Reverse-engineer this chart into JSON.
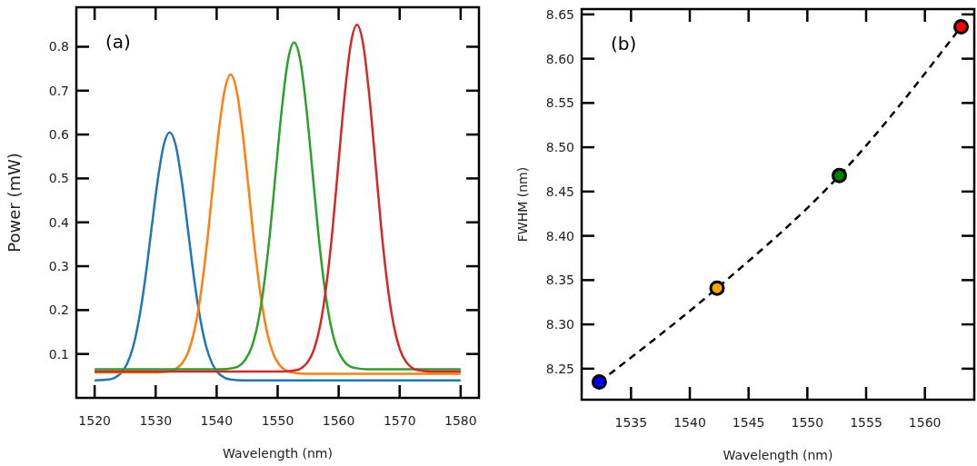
{
  "chart_data": [
    {
      "type": "line",
      "xlabel": "Wavelength (nm)",
      "ylabel": "Power (mW)",
      "annotations": [
        "(a)"
      ],
      "xlim": [
        1517,
        1583
      ],
      "ylim": [
        0,
        0.89
      ],
      "xticks": [
        1520,
        1530,
        1540,
        1550,
        1560,
        1570,
        1580
      ],
      "yticks": [
        0.1,
        0.2,
        0.3,
        0.4,
        0.5,
        0.6,
        0.7,
        0.8
      ],
      "marker": "none",
      "line_style": "solid",
      "series": [
        {
          "color": "#1f77b4",
          "x": [
            1520,
            1522.3,
            1523.3,
            1524.3,
            1525.3,
            1526.3,
            1527.3,
            1528.3,
            1529.3,
            1530.3,
            1531.3,
            1532.3,
            1533.3,
            1534.3,
            1535.3,
            1536.3,
            1537.3,
            1538.3,
            1539.3,
            1540.3,
            1541.3,
            1542.3,
            1544.3,
            1580
          ],
          "values": [
            0.04,
            0.042,
            0.046,
            0.056,
            0.077,
            0.116,
            0.181,
            0.272,
            0.383,
            0.492,
            0.575,
            0.605,
            0.575,
            0.492,
            0.383,
            0.272,
            0.181,
            0.116,
            0.077,
            0.056,
            0.046,
            0.042,
            0.04,
            0.04
          ]
        },
        {
          "color": "#ff7f0e",
          "x": [
            1520,
            1530.3,
            1532.3,
            1533.3,
            1534.3,
            1535.3,
            1536.3,
            1537.3,
            1538.3,
            1539.3,
            1540.3,
            1541.3,
            1542.3,
            1543.3,
            1544.3,
            1545.3,
            1546.3,
            1547.3,
            1548.3,
            1549.3,
            1550.3,
            1551.3,
            1552.3,
            1554.3,
            1580
          ],
          "values": [
            0.058,
            0.058,
            0.061,
            0.066,
            0.078,
            0.103,
            0.15,
            0.228,
            0.337,
            0.471,
            0.602,
            0.7,
            0.737,
            0.698,
            0.599,
            0.468,
            0.334,
            0.225,
            0.147,
            0.1,
            0.075,
            0.063,
            0.058,
            0.055,
            0.055
          ]
        },
        {
          "color": "#2ca02c",
          "x": [
            1520,
            1540.7,
            1542.7,
            1543.7,
            1544.7,
            1545.7,
            1546.7,
            1547.7,
            1548.7,
            1549.7,
            1550.7,
            1551.7,
            1552.7,
            1553.7,
            1554.7,
            1555.7,
            1556.7,
            1557.7,
            1558.7,
            1559.7,
            1560.7,
            1561.7,
            1562.7,
            1564.7,
            1580
          ],
          "values": [
            0.065,
            0.065,
            0.068,
            0.073,
            0.087,
            0.114,
            0.166,
            0.251,
            0.37,
            0.517,
            0.661,
            0.77,
            0.81,
            0.77,
            0.661,
            0.517,
            0.37,
            0.251,
            0.166,
            0.114,
            0.087,
            0.073,
            0.068,
            0.065,
            0.065
          ]
        },
        {
          "color": "#d62728",
          "x": [
            1520,
            1551,
            1553,
            1554,
            1555,
            1556,
            1557,
            1558,
            1559,
            1560,
            1561,
            1562,
            1563,
            1564,
            1565,
            1566,
            1567,
            1568,
            1569,
            1570,
            1571,
            1572,
            1573,
            1575,
            1580
          ],
          "values": [
            0.06,
            0.06,
            0.063,
            0.069,
            0.083,
            0.112,
            0.167,
            0.258,
            0.384,
            0.54,
            0.692,
            0.807,
            0.85,
            0.807,
            0.692,
            0.54,
            0.384,
            0.258,
            0.167,
            0.112,
            0.083,
            0.069,
            0.063,
            0.06,
            0.06
          ]
        }
      ]
    },
    {
      "type": "line",
      "xlabel": "Wavelength (nm)",
      "ylabel": "FWHM (nm)",
      "annotations": [
        "(b)"
      ],
      "xlim": [
        1530.8,
        1564.2
      ],
      "ylim": [
        8.215,
        8.656
      ],
      "xticks": [
        1535,
        1540,
        1545,
        1550,
        1555,
        1560
      ],
      "yticks": [
        {
          "value": 8.25,
          "label": "8.25"
        },
        {
          "value": 8.3,
          "label": "8.30"
        },
        {
          "value": 8.35,
          "label": "8.35"
        },
        {
          "value": 8.4,
          "label": "8.40"
        },
        {
          "value": 8.45,
          "label": "8.45"
        },
        {
          "value": 8.5,
          "label": "8.50"
        },
        {
          "value": 8.55,
          "label": "8.55"
        },
        {
          "value": 8.6,
          "label": "8.60"
        },
        {
          "value": 8.65,
          "label": "8.65"
        }
      ],
      "series": [
        {
          "color": "#000000",
          "line_style": "dashed",
          "marker": "none",
          "x": [
            1532.3,
            1542.32,
            1552.72,
            1563.08
          ],
          "values": [
            8.235,
            8.341,
            8.468,
            8.636
          ]
        },
        {
          "type": "scatter",
          "marker": "circle",
          "colors": [
            "#0000ff",
            "#ffa500",
            "#008000",
            "#ff0000"
          ],
          "x": [
            1532.3,
            1542.32,
            1552.72,
            1563.08
          ],
          "values": [
            8.235,
            8.341,
            8.468,
            8.636
          ]
        }
      ]
    }
  ]
}
